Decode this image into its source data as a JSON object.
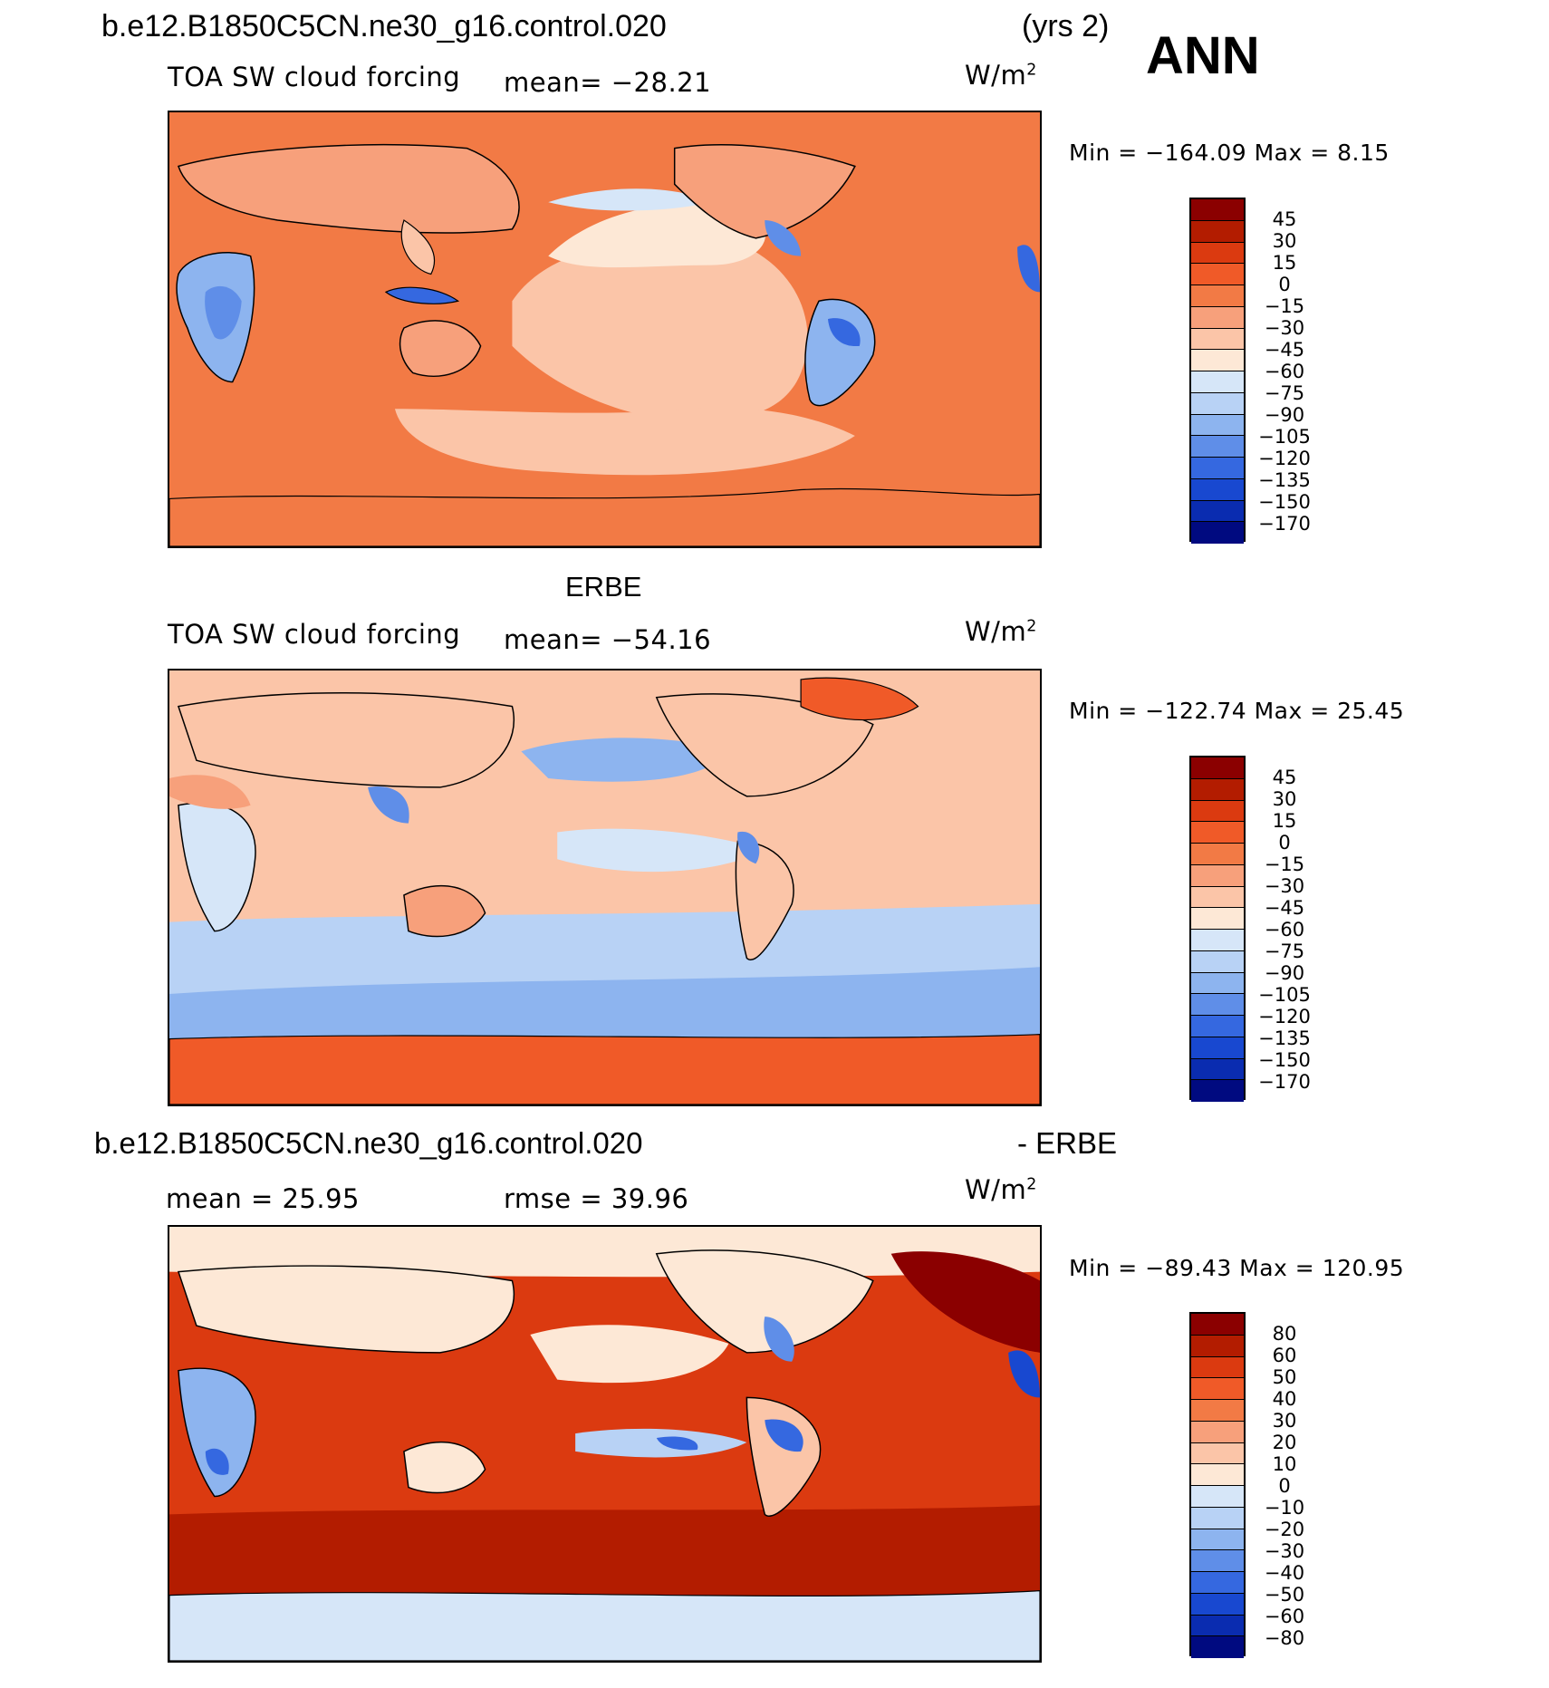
{
  "header": {
    "case_name": "b.e12.B1850C5CN.ne30_g16.control.020",
    "years": "(yrs 2)",
    "season": "ANN"
  },
  "panels": [
    {
      "id": "model",
      "title": "",
      "variable": "TOA SW cloud forcing",
      "stat": "mean=  −28.21",
      "units": "W/m",
      "units_sup": "2",
      "min_max": "Min  =  −164.09  Max  =     8.15",
      "colorbar_labels": [
        "45",
        "30",
        "15",
        "0",
        "−15",
        "−30",
        "−45",
        "−60",
        "−75",
        "−90",
        "−105",
        "−120",
        "−135",
        "−150",
        "−170"
      ]
    },
    {
      "id": "obs",
      "title": "ERBE",
      "variable": "TOA SW cloud forcing",
      "stat": "mean=  −54.16",
      "units": "W/m",
      "units_sup": "2",
      "min_max": "Min  =  −122.74  Max  =   25.45",
      "colorbar_labels": [
        "45",
        "30",
        "15",
        "0",
        "−15",
        "−30",
        "−45",
        "−60",
        "−75",
        "−90",
        "−105",
        "−120",
        "−135",
        "−150",
        "−170"
      ]
    },
    {
      "id": "diff",
      "title_left": "b.e12.B1850C5CN.ne30_g16.control.020",
      "title_right": "- ERBE",
      "mean": "mean  =    25.95",
      "rmse": "rmse  =    39.96",
      "units": "W/m",
      "units_sup": "2",
      "min_max": "Min  =  −89.43  Max  =  120.95",
      "colorbar_labels": [
        "80",
        "60",
        "50",
        "40",
        "30",
        "20",
        "10",
        "0",
        "−10",
        "−20",
        "−30",
        "−40",
        "−50",
        "−60",
        "−80"
      ]
    }
  ],
  "colors": {
    "palette": [
      "#8b0000",
      "#b31c00",
      "#db3a10",
      "#f05a28",
      "#f27a45",
      "#f7a07b",
      "#fbc5a8",
      "#fde8d6",
      "#d6e6f8",
      "#b8d2f5",
      "#8db4ef",
      "#5f8ee8",
      "#3568e0",
      "#1848d0",
      "#0a2cb0",
      "#000a80"
    ],
    "ocean_model": "#f27a45",
    "ocean_obs": "#fbc5a8",
    "ocean_diff": "#db3a10"
  }
}
